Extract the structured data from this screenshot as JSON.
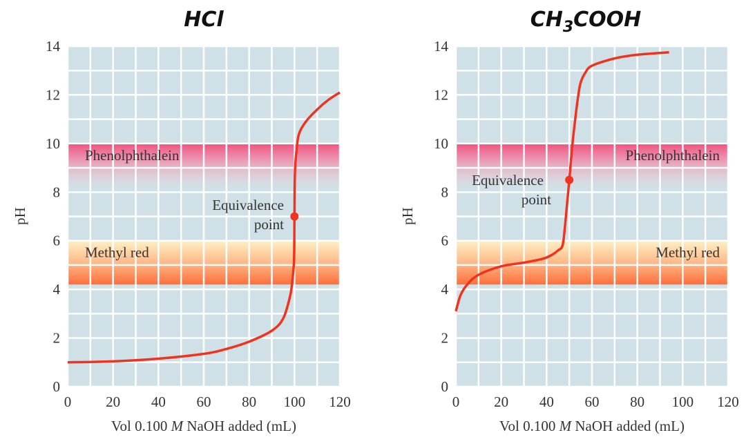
{
  "chart_data": [
    {
      "type": "line",
      "title": "HCl",
      "xlabel_parts": [
        "Vol 0.100 ",
        "M",
        " NaOH added (mL)"
      ],
      "ylabel": "pH",
      "xlim": [
        0,
        120
      ],
      "ylim": [
        0,
        14
      ],
      "x_ticks": [
        0,
        20,
        40,
        60,
        80,
        100,
        120
      ],
      "y_ticks": [
        0,
        2,
        4,
        6,
        8,
        10,
        12,
        14
      ],
      "grid": true,
      "bands": [
        {
          "label": "Phenolphthalein",
          "from": 8.2,
          "to": 10.0,
          "color": "#f0487a"
        },
        {
          "label": "Methyl red",
          "from": 4.2,
          "to": 6.0,
          "color": "#fe6f3c"
        }
      ],
      "series": [
        {
          "color": "#f0321e",
          "points": [
            [
              0,
              1.0
            ],
            [
              20,
              1.04
            ],
            [
              40,
              1.15
            ],
            [
              60,
              1.35
            ],
            [
              70,
              1.55
            ],
            [
              80,
              1.85
            ],
            [
              90,
              2.3
            ],
            [
              95,
              2.8
            ],
            [
              98,
              3.7
            ],
            [
              99,
              4.3
            ],
            [
              99.8,
              5.2
            ],
            [
              100,
              7.0
            ],
            [
              100.2,
              8.8
            ],
            [
              101,
              9.8
            ],
            [
              102,
              10.4
            ],
            [
              105,
              10.9
            ],
            [
              110,
              11.4
            ],
            [
              115,
              11.8
            ],
            [
              120,
              12.1
            ]
          ]
        }
      ],
      "marker": {
        "x": 100,
        "y": 7.0,
        "label": [
          "Equivalence",
          "point"
        ]
      }
    },
    {
      "type": "line",
      "title_base": "CH",
      "title_sub": "3",
      "title_rest": "COOH",
      "xlabel_parts": [
        "Vol 0.100 ",
        "M",
        " NaOH added (mL)"
      ],
      "ylabel": "pH",
      "xlim": [
        0,
        120
      ],
      "ylim": [
        0,
        14
      ],
      "x_ticks": [
        0,
        20,
        40,
        60,
        80,
        100,
        120
      ],
      "y_ticks": [
        0,
        2,
        4,
        6,
        8,
        10,
        12,
        14
      ],
      "grid": true,
      "bands": [
        {
          "label": "Phenolphthalein",
          "from": 8.2,
          "to": 10.0,
          "color": "#f0487a"
        },
        {
          "label": "Methyl red",
          "from": 4.2,
          "to": 6.0,
          "color": "#fe6f3c"
        }
      ],
      "series": [
        {
          "color": "#f0321e",
          "points": [
            [
              0,
              3.1
            ],
            [
              2,
              3.75
            ],
            [
              5,
              4.2
            ],
            [
              10,
              4.6
            ],
            [
              20,
              4.95
            ],
            [
              30,
              5.1
            ],
            [
              38,
              5.25
            ],
            [
              42,
              5.4
            ],
            [
              45,
              5.6
            ],
            [
              47,
              5.8
            ],
            [
              48,
              6.5
            ],
            [
              49,
              7.5
            ],
            [
              50,
              8.5
            ],
            [
              51,
              9.6
            ],
            [
              52,
              10.5
            ],
            [
              53,
              11.3
            ],
            [
              54,
              12.0
            ],
            [
              55,
              12.5
            ],
            [
              57,
              12.9
            ],
            [
              60,
              13.2
            ],
            [
              70,
              13.5
            ],
            [
              80,
              13.65
            ],
            [
              94,
              13.75
            ]
          ]
        }
      ],
      "marker": {
        "x": 50,
        "y": 8.5,
        "label": [
          "Equivalence",
          "point"
        ]
      }
    }
  ]
}
